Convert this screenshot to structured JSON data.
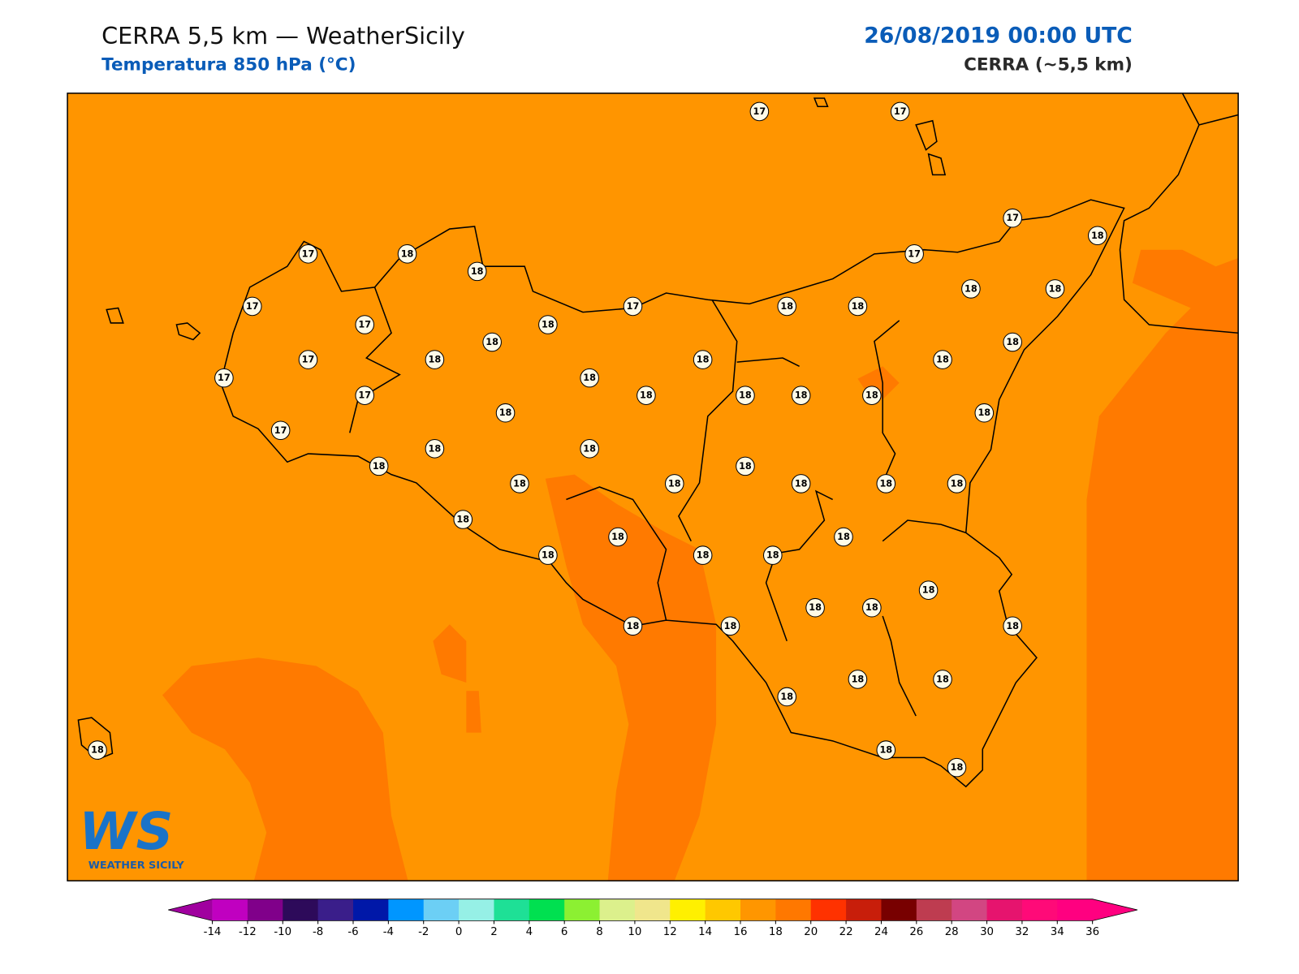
{
  "header": {
    "title": "CERRA 5,5 km — WeatherSicily",
    "subtitle": "Temperatura 850 hPa (°C)",
    "date": "26/08/2019 00:00 UTC",
    "model": "CERRA (~5,5 km)"
  },
  "stations": [
    17,
    17,
    17,
    18,
    17,
    18,
    18,
    17,
    17,
    17,
    18,
    17,
    18,
    18,
    18,
    18,
    17,
    18,
    18,
    18,
    18,
    18,
    17,
    18,
    17,
    18,
    18,
    18,
    18,
    18,
    17,
    18,
    18,
    18,
    18,
    18,
    18,
    18,
    18,
    18,
    18,
    18,
    18,
    18,
    18,
    18,
    18,
    18,
    18,
    18,
    18,
    18,
    18,
    18,
    18,
    18,
    18,
    18,
    18
  ],
  "colorbar": {
    "ticks": [
      -14,
      -12,
      -10,
      -8,
      -6,
      -4,
      -2,
      0,
      2,
      4,
      6,
      8,
      10,
      12,
      14,
      16,
      18,
      20,
      22,
      24,
      26,
      28,
      30,
      32,
      34,
      36
    ],
    "colors": [
      "#c000c0",
      "#80008a",
      "#2d0a5a",
      "#3a1e8a",
      "#0018a8",
      "#0096ff",
      "#6ccff5",
      "#96f0e6",
      "#1ee096",
      "#00e050",
      "#8cf032",
      "#dcf08c",
      "#f0e68c",
      "#fff000",
      "#ffc800",
      "#ff9600",
      "#ff7800",
      "#ff3200",
      "#c81e0a",
      "#780000",
      "#be3c50",
      "#d24682",
      "#e6146e",
      "#ff0a78",
      "#ff0080"
    ],
    "under": "#a0009f",
    "over": "#ff0080"
  },
  "logo": {
    "mark": "WS",
    "text": "WEATHER SICILY"
  }
}
